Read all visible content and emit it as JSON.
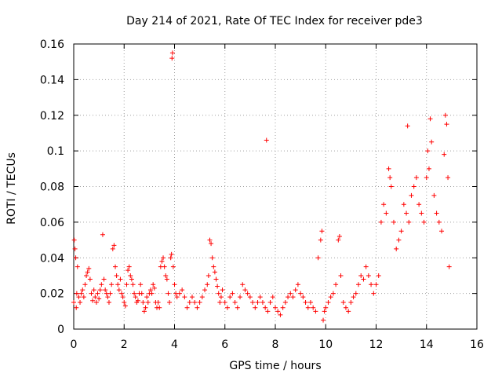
{
  "chart_data": {
    "type": "scatter",
    "title": "Day 214 of 2021, Rate Of TEC Index for receiver pde3",
    "xlabel": "GPS time / hours",
    "ylabel": "ROTI / TECUs",
    "xlim": [
      0,
      16
    ],
    "ylim": [
      0,
      0.16
    ],
    "x_ticks": [
      "0",
      "2",
      "4",
      "6",
      "8",
      "10",
      "12",
      "14",
      "16"
    ],
    "y_ticks": [
      "0",
      "0.02",
      "0.04",
      "0.06",
      "0.08",
      "0.1",
      "0.12",
      "0.14",
      "0.16"
    ],
    "grid": true,
    "marker": "plus",
    "series": [
      {
        "name": "ROTI",
        "color": "#ff0000",
        "points": [
          [
            0.0,
            0.015
          ],
          [
            0.02,
            0.05
          ],
          [
            0.05,
            0.045
          ],
          [
            0.08,
            0.04
          ],
          [
            0.1,
            0.012
          ],
          [
            0.12,
            0.02
          ],
          [
            0.15,
            0.035
          ],
          [
            0.2,
            0.018
          ],
          [
            0.25,
            0.015
          ],
          [
            0.3,
            0.02
          ],
          [
            0.35,
            0.022
          ],
          [
            0.4,
            0.018
          ],
          [
            0.45,
            0.025
          ],
          [
            0.5,
            0.03
          ],
          [
            0.55,
            0.032
          ],
          [
            0.6,
            0.034
          ],
          [
            0.65,
            0.028
          ],
          [
            0.7,
            0.02
          ],
          [
            0.75,
            0.016
          ],
          [
            0.8,
            0.022
          ],
          [
            0.85,
            0.018
          ],
          [
            0.9,
            0.015
          ],
          [
            0.95,
            0.02
          ],
          [
            1.0,
            0.017
          ],
          [
            1.05,
            0.022
          ],
          [
            1.1,
            0.025
          ],
          [
            1.15,
            0.053
          ],
          [
            1.2,
            0.028
          ],
          [
            1.25,
            0.022
          ],
          [
            1.3,
            0.02
          ],
          [
            1.35,
            0.018
          ],
          [
            1.4,
            0.015
          ],
          [
            1.45,
            0.02
          ],
          [
            1.5,
            0.025
          ],
          [
            1.55,
            0.045
          ],
          [
            1.6,
            0.047
          ],
          [
            1.65,
            0.035
          ],
          [
            1.7,
            0.03
          ],
          [
            1.75,
            0.025
          ],
          [
            1.8,
            0.022
          ],
          [
            1.85,
            0.028
          ],
          [
            1.9,
            0.02
          ],
          [
            1.95,
            0.018
          ],
          [
            2.0,
            0.015
          ],
          [
            2.05,
            0.013
          ],
          [
            2.1,
            0.025
          ],
          [
            2.15,
            0.033
          ],
          [
            2.2,
            0.035
          ],
          [
            2.25,
            0.03
          ],
          [
            2.3,
            0.028
          ],
          [
            2.35,
            0.025
          ],
          [
            2.4,
            0.02
          ],
          [
            2.45,
            0.018
          ],
          [
            2.5,
            0.015
          ],
          [
            2.55,
            0.016
          ],
          [
            2.6,
            0.02
          ],
          [
            2.65,
            0.025
          ],
          [
            2.7,
            0.02
          ],
          [
            2.75,
            0.015
          ],
          [
            2.8,
            0.01
          ],
          [
            2.85,
            0.012
          ],
          [
            2.9,
            0.018
          ],
          [
            2.95,
            0.015
          ],
          [
            3.0,
            0.02
          ],
          [
            3.05,
            0.022
          ],
          [
            3.1,
            0.02
          ],
          [
            3.15,
            0.025
          ],
          [
            3.2,
            0.023
          ],
          [
            3.25,
            0.015
          ],
          [
            3.3,
            0.012
          ],
          [
            3.35,
            0.015
          ],
          [
            3.4,
            0.012
          ],
          [
            3.45,
            0.035
          ],
          [
            3.5,
            0.038
          ],
          [
            3.55,
            0.04
          ],
          [
            3.6,
            0.035
          ],
          [
            3.65,
            0.03
          ],
          [
            3.7,
            0.028
          ],
          [
            3.75,
            0.02
          ],
          [
            3.8,
            0.015
          ],
          [
            3.85,
            0.04
          ],
          [
            3.88,
            0.042
          ],
          [
            3.9,
            0.152
          ],
          [
            3.92,
            0.155
          ],
          [
            3.95,
            0.035
          ],
          [
            4.0,
            0.025
          ],
          [
            4.05,
            0.02
          ],
          [
            4.1,
            0.018
          ],
          [
            4.2,
            0.02
          ],
          [
            4.3,
            0.022
          ],
          [
            4.4,
            0.018
          ],
          [
            4.5,
            0.012
          ],
          [
            4.6,
            0.015
          ],
          [
            4.7,
            0.018
          ],
          [
            4.8,
            0.015
          ],
          [
            4.9,
            0.012
          ],
          [
            5.0,
            0.015
          ],
          [
            5.1,
            0.018
          ],
          [
            5.2,
            0.022
          ],
          [
            5.3,
            0.025
          ],
          [
            5.35,
            0.03
          ],
          [
            5.4,
            0.05
          ],
          [
            5.45,
            0.048
          ],
          [
            5.5,
            0.04
          ],
          [
            5.55,
            0.035
          ],
          [
            5.6,
            0.032
          ],
          [
            5.65,
            0.028
          ],
          [
            5.7,
            0.024
          ],
          [
            5.75,
            0.02
          ],
          [
            5.8,
            0.015
          ],
          [
            5.85,
            0.018
          ],
          [
            5.9,
            0.022
          ],
          [
            6.0,
            0.015
          ],
          [
            6.1,
            0.012
          ],
          [
            6.2,
            0.018
          ],
          [
            6.3,
            0.02
          ],
          [
            6.4,
            0.015
          ],
          [
            6.5,
            0.012
          ],
          [
            6.6,
            0.018
          ],
          [
            6.7,
            0.025
          ],
          [
            6.8,
            0.022
          ],
          [
            6.9,
            0.02
          ],
          [
            7.0,
            0.018
          ],
          [
            7.1,
            0.015
          ],
          [
            7.2,
            0.012
          ],
          [
            7.3,
            0.015
          ],
          [
            7.4,
            0.018
          ],
          [
            7.5,
            0.015
          ],
          [
            7.6,
            0.012
          ],
          [
            7.65,
            0.106
          ],
          [
            7.7,
            0.01
          ],
          [
            7.8,
            0.015
          ],
          [
            7.9,
            0.018
          ],
          [
            8.0,
            0.012
          ],
          [
            8.1,
            0.01
          ],
          [
            8.2,
            0.008
          ],
          [
            8.3,
            0.012
          ],
          [
            8.4,
            0.015
          ],
          [
            8.5,
            0.018
          ],
          [
            8.6,
            0.02
          ],
          [
            8.7,
            0.018
          ],
          [
            8.8,
            0.022
          ],
          [
            8.9,
            0.025
          ],
          [
            9.0,
            0.02
          ],
          [
            9.1,
            0.018
          ],
          [
            9.2,
            0.015
          ],
          [
            9.3,
            0.012
          ],
          [
            9.4,
            0.015
          ],
          [
            9.5,
            0.012
          ],
          [
            9.6,
            0.01
          ],
          [
            9.7,
            0.04
          ],
          [
            9.8,
            0.05
          ],
          [
            9.85,
            0.055
          ],
          [
            9.9,
            0.005
          ],
          [
            9.95,
            0.01
          ],
          [
            10.0,
            0.012
          ],
          [
            10.1,
            0.015
          ],
          [
            10.2,
            0.018
          ],
          [
            10.3,
            0.02
          ],
          [
            10.4,
            0.025
          ],
          [
            10.5,
            0.05
          ],
          [
            10.55,
            0.052
          ],
          [
            10.6,
            0.03
          ],
          [
            10.7,
            0.015
          ],
          [
            10.8,
            0.012
          ],
          [
            10.9,
            0.01
          ],
          [
            11.0,
            0.015
          ],
          [
            11.1,
            0.018
          ],
          [
            11.2,
            0.02
          ],
          [
            11.3,
            0.025
          ],
          [
            11.4,
            0.03
          ],
          [
            11.5,
            0.028
          ],
          [
            11.6,
            0.035
          ],
          [
            11.7,
            0.03
          ],
          [
            11.8,
            0.025
          ],
          [
            11.9,
            0.02
          ],
          [
            12.0,
            0.025
          ],
          [
            12.1,
            0.03
          ],
          [
            12.2,
            0.06
          ],
          [
            12.3,
            0.07
          ],
          [
            12.4,
            0.065
          ],
          [
            12.5,
            0.09
          ],
          [
            12.55,
            0.085
          ],
          [
            12.6,
            0.08
          ],
          [
            12.7,
            0.06
          ],
          [
            12.8,
            0.045
          ],
          [
            12.9,
            0.05
          ],
          [
            13.0,
            0.055
          ],
          [
            13.1,
            0.07
          ],
          [
            13.2,
            0.065
          ],
          [
            13.25,
            0.114
          ],
          [
            13.3,
            0.06
          ],
          [
            13.4,
            0.075
          ],
          [
            13.5,
            0.08
          ],
          [
            13.6,
            0.085
          ],
          [
            13.7,
            0.07
          ],
          [
            13.8,
            0.065
          ],
          [
            13.9,
            0.06
          ],
          [
            14.0,
            0.085
          ],
          [
            14.05,
            0.1
          ],
          [
            14.1,
            0.09
          ],
          [
            14.15,
            0.118
          ],
          [
            14.2,
            0.105
          ],
          [
            14.3,
            0.075
          ],
          [
            14.4,
            0.065
          ],
          [
            14.5,
            0.06
          ],
          [
            14.6,
            0.055
          ],
          [
            14.7,
            0.098
          ],
          [
            14.75,
            0.12
          ],
          [
            14.8,
            0.115
          ],
          [
            14.85,
            0.085
          ],
          [
            14.9,
            0.035
          ]
        ]
      }
    ]
  }
}
